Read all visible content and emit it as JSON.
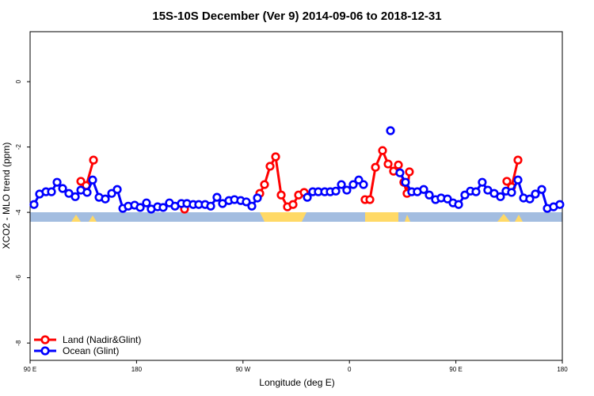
{
  "chart_data": {
    "type": "line",
    "title": "15S-10S December (Ver 9)   2014-09-06 to 2018-12-31",
    "x_label": "Longitude (deg E)",
    "y_label": "XCO2 - MLO trend (ppm)",
    "xlim": [
      90,
      540
    ],
    "ylim": [
      -8.53,
      1.53
    ],
    "xticks": [
      {
        "value": 90,
        "label": "90 E"
      },
      180,
      {
        "value": 270,
        "label": "90 W"
      },
      {
        "value": 360,
        "label": "0"
      },
      {
        "value": 450,
        "label": "90 E"
      },
      {
        "value": 540,
        "label": "180"
      }
    ],
    "yticks": [
      -8,
      -6,
      -4,
      -2,
      0
    ],
    "legend": "bottomleft",
    "series": [
      {
        "name": "Land (Nadir&Glint)",
        "color": "#ff0000",
        "x": [
          132.9,
          137.5,
          143.6,
          null,
          220.6,
          null,
          284.2,
          288.2,
          292.9,
          297.6,
          302.3,
          307.6,
          312.3,
          317.0,
          321.7,
          null,
          373.2,
          377.3,
          382.0,
          388.0,
          392.7,
          397.3,
          401.4,
          406.0,
          408.7,
          410.7,
          null,
          493.1,
          497.1,
          502.5
        ],
        "values": [
          -3.05,
          -3.18,
          -2.4,
          null,
          -3.9,
          null,
          -3.42,
          -3.15,
          -2.59,
          -2.3,
          -3.47,
          -3.83,
          -3.76,
          -3.47,
          -3.39,
          null,
          -3.61,
          -3.61,
          -2.62,
          -2.11,
          -2.52,
          -2.74,
          -2.55,
          -3.08,
          -3.42,
          -2.76,
          null,
          -3.05,
          -3.22,
          -2.4
        ]
      },
      {
        "name": "Ocean (Glint)",
        "color": "#0000ff",
        "x": [
          93.3,
          98.0,
          103.4,
          108.1,
          112.8,
          117.5,
          122.8,
          128.2,
          132.9,
          138.2,
          142.9,
          148.3,
          153.6,
          159.0,
          163.7,
          168.4,
          173.0,
          178.4,
          183.1,
          188.4,
          192.4,
          197.8,
          202.5,
          207.8,
          212.5,
          217.9,
          222.6,
          227.9,
          232.6,
          238.0,
          242.7,
          248.0,
          252.7,
          258.1,
          262.8,
          268.1,
          272.8,
          277.5,
          282.2,
          null,
          324.4,
          329.0,
          333.7,
          339.1,
          343.8,
          348.5,
          353.2,
          357.8,
          363.2,
          367.9,
          371.9,
          null,
          394.7,
          null,
          402.7,
          407.4,
          412.7,
          417.4,
          422.8,
          427.5,
          432.8,
          437.5,
          442.9,
          447.6,
          452.3,
          457.6,
          462.3,
          467.0,
          472.3,
          477.0,
          482.4,
          487.7,
          492.4,
          497.1,
          502.5,
          507.2,
          512.5,
          517.2,
          522.6,
          527.3,
          532.6,
          537.9
        ],
        "values": [
          -3.76,
          -3.44,
          -3.37,
          -3.37,
          -3.08,
          -3.27,
          -3.42,
          -3.52,
          -3.32,
          -3.39,
          -3.01,
          -3.54,
          -3.59,
          -3.42,
          -3.3,
          -3.88,
          -3.81,
          -3.78,
          -3.85,
          -3.71,
          -3.9,
          -3.83,
          -3.85,
          -3.71,
          -3.81,
          -3.73,
          -3.73,
          -3.76,
          -3.76,
          -3.76,
          -3.81,
          -3.54,
          -3.73,
          -3.64,
          -3.61,
          -3.64,
          -3.68,
          -3.81,
          -3.56,
          null,
          -3.54,
          -3.37,
          -3.37,
          -3.37,
          -3.37,
          -3.35,
          -3.15,
          -3.32,
          -3.15,
          -3.01,
          -3.15,
          null,
          -1.5,
          null,
          -2.79,
          -3.08,
          -3.37,
          -3.37,
          -3.3,
          -3.47,
          -3.61,
          -3.56,
          -3.59,
          -3.71,
          -3.76,
          -3.47,
          -3.35,
          -3.37,
          -3.08,
          -3.32,
          -3.42,
          -3.52,
          -3.35,
          -3.39,
          -3.01,
          -3.56,
          -3.59,
          -3.44,
          -3.3,
          -3.88,
          -3.83,
          -3.76
        ]
      }
    ]
  }
}
